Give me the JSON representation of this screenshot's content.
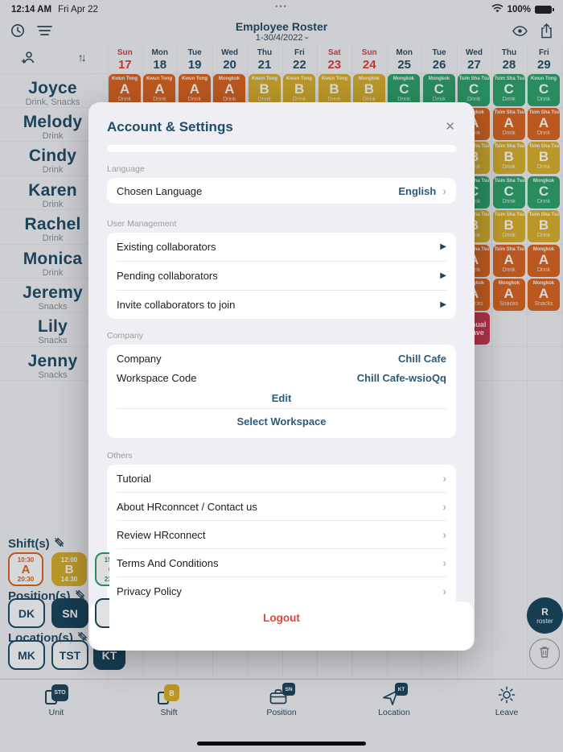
{
  "status_bar": {
    "time": "12:14 AM",
    "date": "Fri Apr 22",
    "battery": "100%",
    "dots": "•••"
  },
  "header": {
    "title": "Employee Roster",
    "date_range": "1-30/4/2022"
  },
  "icons": {
    "close": "✕",
    "chevron_right": "›",
    "triangle_right": "▶",
    "sort": "↑↓"
  },
  "calendar": {
    "days": [
      {
        "dow": "Sun",
        "date": "17",
        "weekend": true
      },
      {
        "dow": "Mon",
        "date": "18",
        "weekend": false
      },
      {
        "dow": "Tue",
        "date": "19",
        "weekend": false
      },
      {
        "dow": "Wed",
        "date": "20",
        "weekend": false
      },
      {
        "dow": "Thu",
        "date": "21",
        "weekend": false
      },
      {
        "dow": "Fri",
        "date": "22",
        "weekend": false
      },
      {
        "dow": "Sat",
        "date": "23",
        "weekend": true
      },
      {
        "dow": "Sun",
        "date": "24",
        "weekend": true
      },
      {
        "dow": "Mon",
        "date": "25",
        "weekend": false
      },
      {
        "dow": "Tue",
        "date": "26",
        "weekend": false
      },
      {
        "dow": "Wed",
        "date": "27",
        "weekend": false
      },
      {
        "dow": "Thu",
        "date": "28",
        "weekend": false
      },
      {
        "dow": "Fri",
        "date": "29",
        "weekend": false
      }
    ]
  },
  "employees": [
    {
      "name": "Joyce",
      "products": "Drink, Snacks"
    },
    {
      "name": "Melody",
      "products": "Drink"
    },
    {
      "name": "Cindy",
      "products": "Drink"
    },
    {
      "name": "Karen",
      "products": "Drink"
    },
    {
      "name": "Rachel",
      "products": "Drink"
    },
    {
      "name": "Monica",
      "products": "Drink"
    },
    {
      "name": "Jeremy",
      "products": "Snacks"
    },
    {
      "name": "Lily",
      "products": "Snacks"
    },
    {
      "name": "Jenny",
      "products": "Snacks"
    }
  ],
  "roster": {
    "colors": {
      "A": "#dc6520",
      "B": "#d9b02c",
      "C": "#2ea26b",
      "leave": "#cc3750"
    },
    "rows": [
      [
        {
          "loc": "Kwun Tong",
          "code": "A",
          "sub": "Drink"
        },
        {
          "loc": "Kwun Tong",
          "code": "A",
          "sub": "Drink"
        },
        {
          "loc": "Kwun Tong",
          "code": "A",
          "sub": "Drink"
        },
        {
          "loc": "Mongkok",
          "code": "A",
          "sub": "Drink"
        },
        {
          "loc": "Kwun Tong",
          "code": "B",
          "sub": "Drink"
        },
        {
          "loc": "Kwun Tong",
          "code": "B",
          "sub": "Drink"
        },
        {
          "loc": "Kwun Tong",
          "code": "B",
          "sub": "Drink"
        },
        {
          "loc": "Mongkok",
          "code": "B",
          "sub": "Drink"
        },
        {
          "loc": "Mongkok",
          "code": "C",
          "sub": "Drink"
        },
        {
          "loc": "Mongkok",
          "code": "C",
          "sub": "Drink"
        },
        {
          "loc": "Tsim Sha Tsui",
          "code": "C",
          "sub": "Drink"
        },
        {
          "loc": "Tsim Sha Tsui",
          "code": "C",
          "sub": "Drink"
        },
        {
          "loc": "Kwun Tong",
          "code": "C",
          "sub": "Drink"
        }
      ],
      [
        null,
        null,
        null,
        null,
        null,
        null,
        null,
        null,
        null,
        null,
        {
          "loc": "Mongkok",
          "code": "A",
          "sub": "Drink"
        },
        {
          "loc": "Tsim Sha Tsui",
          "code": "A",
          "sub": "Drink"
        },
        {
          "loc": "Tsim Sha Tsui",
          "code": "A",
          "sub": "Drink"
        }
      ],
      [
        null,
        null,
        null,
        null,
        null,
        null,
        null,
        null,
        null,
        null,
        {
          "loc": "Tsim Sha Tsui",
          "code": "B",
          "sub": "Drink"
        },
        {
          "loc": "Tsim Sha Tsui",
          "code": "B",
          "sub": "Drink"
        },
        {
          "loc": "Tsim Sha Tsui",
          "code": "B",
          "sub": "Drink"
        }
      ],
      [
        null,
        null,
        null,
        null,
        null,
        null,
        null,
        null,
        null,
        null,
        {
          "loc": "Tsim Sha Tsui",
          "code": "C",
          "sub": "Drink"
        },
        {
          "loc": "Tsim Sha Tsui",
          "code": "C",
          "sub": "Drink"
        },
        {
          "loc": "Mongkok",
          "code": "C",
          "sub": "Drink"
        }
      ],
      [
        null,
        null,
        null,
        null,
        null,
        null,
        null,
        null,
        null,
        null,
        {
          "loc": "Tsim Sha Tsui",
          "code": "B",
          "sub": "Drink"
        },
        {
          "loc": "Tsim Sha Tsui",
          "code": "B",
          "sub": "Drink"
        },
        {
          "loc": "Tsim Sha Tsui",
          "code": "B",
          "sub": "Drink"
        }
      ],
      [
        null,
        null,
        null,
        null,
        null,
        null,
        null,
        null,
        null,
        null,
        {
          "loc": "Tsim Sha Tsui",
          "code": "A",
          "sub": "Drink"
        },
        {
          "loc": "Tsim Sha Tsui",
          "code": "A",
          "sub": "Drink"
        },
        {
          "loc": "Mongkok",
          "code": "A",
          "sub": "Drink"
        }
      ],
      [
        null,
        null,
        null,
        null,
        null,
        null,
        null,
        null,
        null,
        null,
        {
          "loc": "Mongkok",
          "code": "A",
          "sub": "Snacks"
        },
        {
          "loc": "Mongkok",
          "code": "A",
          "sub": "Snacks"
        },
        {
          "loc": "Mongkok",
          "code": "A",
          "sub": "Snacks"
        }
      ],
      [
        null,
        null,
        null,
        null,
        null,
        null,
        null,
        null,
        null,
        null,
        {
          "leave": "Annual Leave"
        },
        null,
        null
      ],
      [
        null,
        null,
        null,
        null,
        null,
        null,
        null,
        null,
        null,
        null,
        null,
        null,
        null
      ]
    ]
  },
  "filters": {
    "shift_label": "Shift(s)",
    "shifts": [
      {
        "start": "10:30",
        "code": "A",
        "end": "20:30",
        "style": "orange"
      },
      {
        "start": "12:00",
        "code": "B",
        "end": "14:30",
        "style": "yellow"
      },
      {
        "start": "15:00",
        "code": "C",
        "end": "23:00",
        "style": "green"
      }
    ],
    "position_label": "Position(s)",
    "positions": [
      {
        "code": "DK",
        "selected": false
      },
      {
        "code": "SN",
        "selected": true
      },
      {
        "code": "",
        "selected": false
      }
    ],
    "location_label": "Location(s)",
    "locations": [
      {
        "code": "MK",
        "selected": false
      },
      {
        "code": "TST",
        "selected": false
      },
      {
        "code": "KT",
        "selected": true
      }
    ]
  },
  "floating": {
    "roster_letter": "R",
    "roster_label": "roster"
  },
  "toolbar": {
    "items": [
      {
        "label": "Unit",
        "badge": "STO"
      },
      {
        "label": "Shift",
        "badge": "B"
      },
      {
        "label": "Position",
        "badge": "SN"
      },
      {
        "label": "Location",
        "badge": "KT"
      },
      {
        "label": "Leave",
        "badge": ""
      }
    ]
  },
  "modal": {
    "title": "Account & Settings",
    "language_section": {
      "header": "Language",
      "row_label": "Chosen Language",
      "value": "English"
    },
    "user_section": {
      "header": "User Management",
      "rows": [
        "Existing collaborators",
        "Pending collaborators",
        "Invite collaborators to join"
      ]
    },
    "company_section": {
      "header": "Company",
      "rows": [
        {
          "label": "Company",
          "value": "Chill Cafe"
        },
        {
          "label": "Workspace Code",
          "value": "Chill Cafe-wsioQq"
        }
      ],
      "actions": [
        "Edit",
        "Select Workspace"
      ]
    },
    "others_section": {
      "header": "Others",
      "rows": [
        "Tutorial",
        "About HRconncet / Contact us",
        "Review HRconnect",
        "Terms And Conditions",
        "Privacy Policy"
      ]
    },
    "logout_label": "Logout"
  }
}
